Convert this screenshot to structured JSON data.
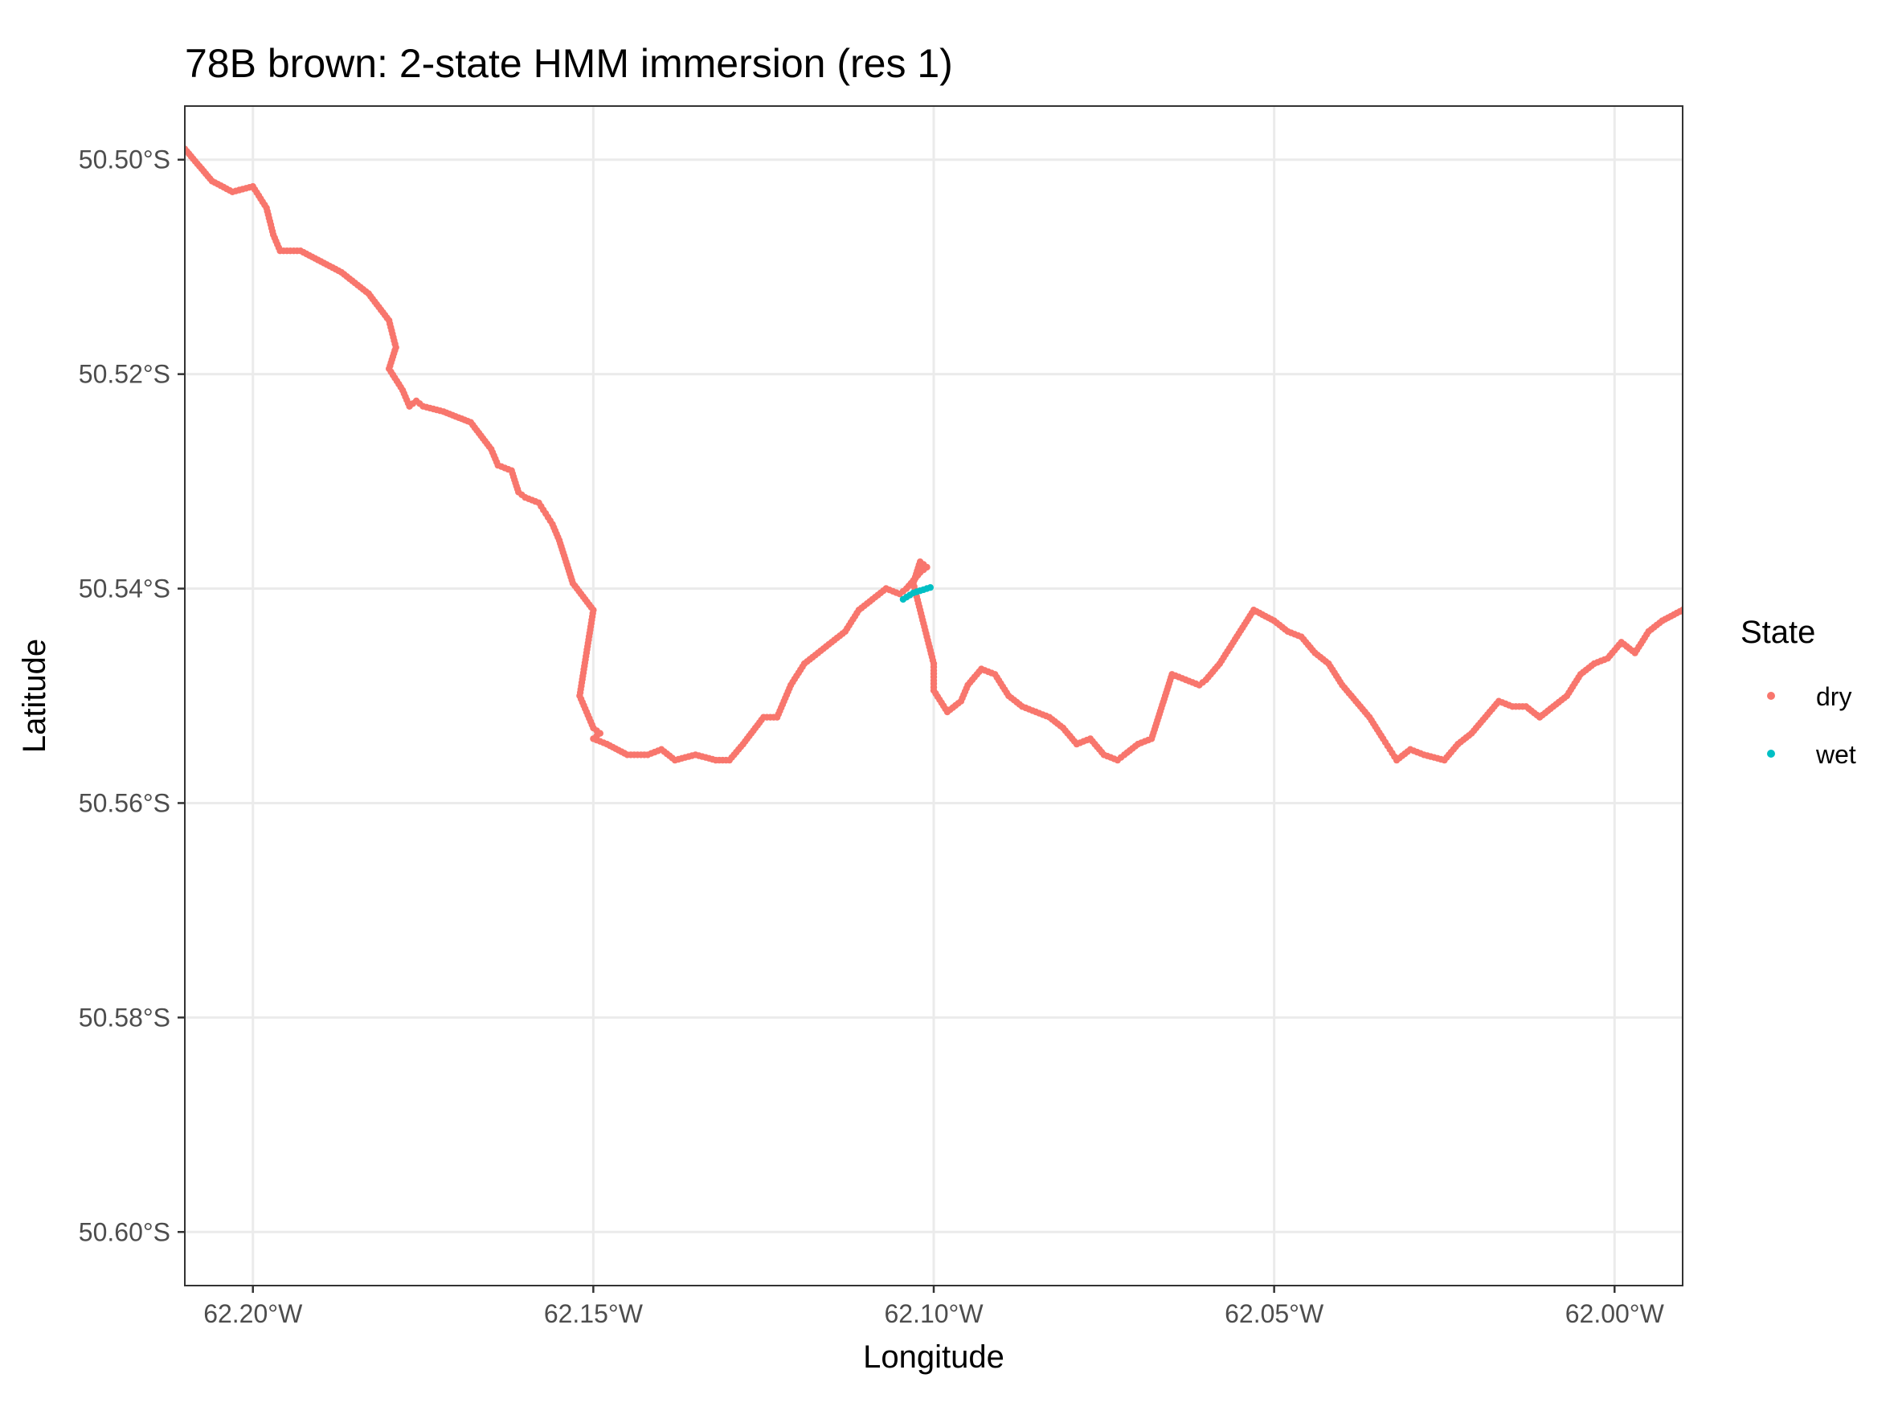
{
  "chart_data": {
    "type": "scatter",
    "title": "78B brown: 2-state HMM immersion (res 1)",
    "xlabel": "Longitude",
    "ylabel": "Latitude",
    "xlim": [
      -62.21,
      -61.99
    ],
    "ylim": [
      -50.605,
      -50.495
    ],
    "x_ticks": [
      -62.2,
      -62.15,
      -62.1,
      -62.05,
      -62.0
    ],
    "x_tick_labels": [
      "62.20°W",
      "62.15°W",
      "62.10°W",
      "62.05°W",
      "62.00°W"
    ],
    "y_ticks": [
      -50.5,
      -50.52,
      -50.54,
      -50.56,
      -50.58,
      -50.6
    ],
    "y_tick_labels": [
      "50.50°S",
      "50.52°S",
      "50.54°S",
      "50.56°S",
      "50.58°S",
      "50.60°S"
    ],
    "grid": true,
    "legend": {
      "title": "State",
      "position": "right",
      "entries": [
        {
          "label": "dry",
          "color": "#F8766D"
        },
        {
          "label": "wet",
          "color": "#00BFC4"
        }
      ]
    },
    "series": [
      {
        "name": "dry",
        "color": "#F8766D",
        "x": [
          -62.21,
          -62.206,
          -62.203,
          -62.2,
          -62.198,
          -62.197,
          -62.196,
          -62.193,
          -62.19,
          -62.187,
          -62.183,
          -62.18,
          -62.179,
          -62.18,
          -62.178,
          -62.177,
          -62.176,
          -62.175,
          -62.172,
          -62.168,
          -62.165,
          -62.164,
          -62.162,
          -62.161,
          -62.16,
          -62.158,
          -62.157,
          -62.156,
          -62.155,
          -62.153,
          -62.15,
          -62.151,
          -62.152,
          -62.15,
          -62.149,
          -62.15,
          -62.148,
          -62.145,
          -62.142,
          -62.14,
          -62.138,
          -62.135,
          -62.132,
          -62.13,
          -62.128,
          -62.125,
          -62.123,
          -62.121,
          -62.119,
          -62.117,
          -62.115,
          -62.113,
          -62.111,
          -62.109,
          -62.107,
          -62.105,
          -62.104,
          -62.102,
          -62.101,
          -62.102,
          -62.103,
          -62.102,
          -62.101,
          -62.1,
          -62.1,
          -62.098,
          -62.096,
          -62.095,
          -62.093,
          -62.091,
          -62.089,
          -62.087,
          -62.085,
          -62.083,
          -62.081,
          -62.079,
          -62.077,
          -62.075,
          -62.073,
          -62.072,
          -62.07,
          -62.068,
          -62.066,
          -62.065,
          -62.063,
          -62.061,
          -62.06,
          -62.058,
          -62.056,
          -62.053,
          -62.05,
          -62.048,
          -62.046,
          -62.044,
          -62.042,
          -62.04,
          -62.038,
          -62.036,
          -62.034,
          -62.033,
          -62.032,
          -62.03,
          -62.028,
          -62.025,
          -62.023,
          -62.021,
          -62.019,
          -62.017,
          -62.015,
          -62.013,
          -62.011,
          -62.009,
          -62.007,
          -62.005,
          -62.003,
          -62.001,
          -61.999,
          -61.997,
          -61.995,
          -61.993,
          -61.99
        ],
        "y": [
          -50.499,
          -50.502,
          -50.503,
          -50.5025,
          -50.5045,
          -50.507,
          -50.5085,
          -50.5085,
          -50.5095,
          -50.5105,
          -50.5125,
          -50.515,
          -50.5175,
          -50.5195,
          -50.5215,
          -50.523,
          -50.5225,
          -50.523,
          -50.5235,
          -50.5245,
          -50.527,
          -50.5285,
          -50.529,
          -50.531,
          -50.5315,
          -50.532,
          -50.533,
          -50.534,
          -50.5355,
          -50.5395,
          -50.542,
          -50.546,
          -50.55,
          -50.553,
          -50.5535,
          -50.554,
          -50.5545,
          -50.5555,
          -50.5555,
          -50.555,
          -50.556,
          -50.5555,
          -50.556,
          -50.556,
          -50.5545,
          -50.552,
          -50.552,
          -50.549,
          -50.547,
          -50.546,
          -50.545,
          -50.544,
          -50.542,
          -50.541,
          -50.54,
          -50.5405,
          -50.54,
          -50.5385,
          -50.538,
          -50.5375,
          -50.5395,
          -50.542,
          -50.5445,
          -50.547,
          -50.5495,
          -50.5515,
          -50.5505,
          -50.549,
          -50.5475,
          -50.548,
          -50.55,
          -50.551,
          -50.5515,
          -50.552,
          -50.553,
          -50.5545,
          -50.554,
          -50.5555,
          -50.556,
          -50.5555,
          -50.5545,
          -50.554,
          -50.55,
          -50.548,
          -50.5485,
          -50.549,
          -50.5485,
          -50.547,
          -50.545,
          -50.542,
          -50.543,
          -50.544,
          -50.5445,
          -50.546,
          -50.547,
          -50.549,
          -50.5505,
          -50.552,
          -50.554,
          -50.555,
          -50.556,
          -50.555,
          -50.5555,
          -50.556,
          -50.5545,
          -50.5535,
          -50.552,
          -50.5505,
          -50.551,
          -50.551,
          -50.552,
          -50.551,
          -50.55,
          -50.548,
          -50.547,
          -50.5465,
          -50.545,
          -50.546,
          -50.544,
          -50.543,
          -50.542
        ]
      },
      {
        "name": "wet",
        "color": "#00BFC4",
        "x": [
          -62.1045,
          -62.104,
          -62.1035,
          -62.103,
          -62.1025,
          -62.102,
          -62.1015,
          -62.101,
          -62.1005
        ],
        "y": [
          -50.541,
          -50.5408,
          -50.5406,
          -50.5404,
          -50.5403,
          -50.5402,
          -50.5401,
          -50.54,
          -50.5399
        ]
      }
    ]
  }
}
